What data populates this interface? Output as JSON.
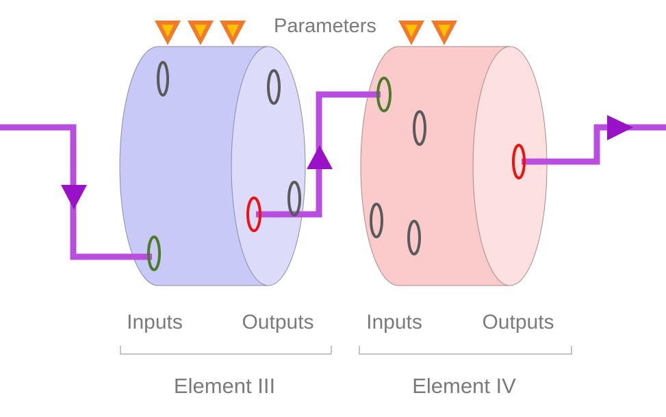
{
  "parameters_label": "Parameters",
  "elements": [
    {
      "name": "Element III",
      "inputs_label": "Inputs",
      "outputs_label": "Outputs"
    },
    {
      "name": "Element IV",
      "inputs_label": "Inputs",
      "outputs_label": "Outputs"
    }
  ],
  "colors": {
    "element_iii_body": "#c8c9f6",
    "element_iii_face": "#dcdcfa",
    "element_iv_body": "#fbcaca",
    "element_iv_face": "#fde0e0",
    "connection": "#b84de0",
    "arrow": "#9a12c8",
    "parameter_outer": "#f07a2a",
    "parameter_inner": "#ffc000",
    "port_active_input": "#4a7a2a",
    "port_active_output": "#ee1111",
    "port_idle": "#5a5a5a",
    "label_text": "#7a7a7a"
  }
}
